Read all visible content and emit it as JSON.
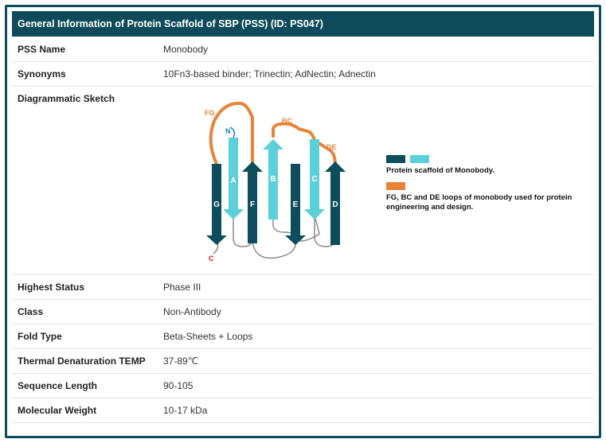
{
  "title": "General Information of Protein Scaffold of SBP (PSS) (ID: PS047)",
  "rows": {
    "pss_name": {
      "label": "PSS Name",
      "value": "Monobody"
    },
    "synonyms": {
      "label": "Synonyms",
      "value": "10Fn3-based binder; Trinectin; AdNectin; Adnectin"
    },
    "sketch": {
      "label": "Diagrammatic Sketch"
    },
    "highest_status": {
      "label": "Highest Status",
      "value": "Phase III"
    },
    "class": {
      "label": "Class",
      "value": "Non-Antibody"
    },
    "fold_type": {
      "label": "Fold Type",
      "value": "Beta-Sheets + Loops"
    },
    "thermal": {
      "label": "Thermal Denaturation TEMP",
      "value": "37-89℃"
    },
    "seq_length": {
      "label": "Sequence Length",
      "value": "90-105"
    },
    "mol_weight": {
      "label": "Molecular Weight",
      "value": "10-17 kDa"
    }
  },
  "diagram": {
    "strands": {
      "a": "A",
      "b": "B",
      "c": "C",
      "d": "D",
      "e": "E",
      "f": "F",
      "g": "G"
    },
    "loops": {
      "fg": "FG",
      "bc": "BC",
      "de": "DE"
    },
    "termini": {
      "n": "N",
      "c": "C"
    },
    "legend": {
      "scaffold": "Protein scaffold of Monobody.",
      "loops_line1": "FG, BC and DE loops of monobody used for protein",
      "loops_line2": "engineering and design."
    },
    "colors": {
      "dark": "#0d4d5c",
      "light": "#5bd0d8",
      "loop": "#e8843a",
      "gray_loop": "#8a8a8a",
      "n_term": "#1f7fc1",
      "c_term": "#d01818"
    }
  }
}
